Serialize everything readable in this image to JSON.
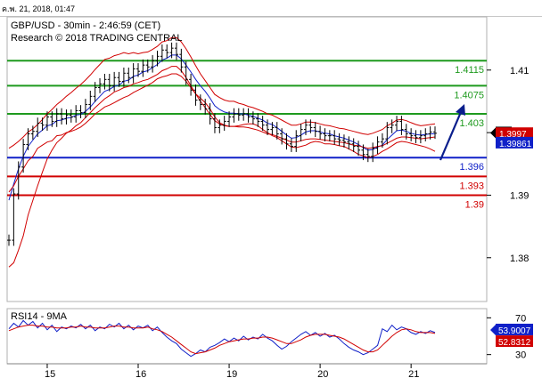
{
  "window": {
    "timestamp": "ค.พ. 21, 2018, 01:47"
  },
  "chart_data": [
    {
      "type": "line",
      "title": "GBP/USD - 30min - 2:46:59 (CET)",
      "subtitle": "Research © 2018 TRADING CENTRAL",
      "ylim": [
        1.373,
        1.4185
      ],
      "y_ticks": [
        {
          "v": 1.41,
          "label": "1.41"
        },
        {
          "v": 1.4,
          "label": "1.40"
        },
        {
          "v": 1.39,
          "label": "1.39"
        },
        {
          "v": 1.38,
          "label": "1.38"
        }
      ],
      "x_ticks": [
        "15",
        "16",
        "19",
        "20",
        "21"
      ],
      "grid": false,
      "current_price": {
        "label": "1.4",
        "value": 1.39981
      },
      "price_tags": [
        {
          "label": "1.3997",
          "value": 1.3997,
          "color": "#d10000"
        },
        {
          "label": "1.39861",
          "value": 1.39861,
          "color": "#1020c8"
        }
      ],
      "levels": [
        {
          "label": "1.4115",
          "value": 1.4115,
          "color": "#1e9a1e"
        },
        {
          "label": "1.4075",
          "value": 1.4075,
          "color": "#1e9a1e"
        },
        {
          "label": "1.403",
          "value": 1.403,
          "color": "#1e9a1e"
        },
        {
          "label": "1.396",
          "value": 1.396,
          "color": "#1020c8"
        },
        {
          "label": "1.393",
          "value": 1.393,
          "color": "#d10000"
        },
        {
          "label": "1.39",
          "value": 1.39,
          "color": "#d10000"
        }
      ],
      "series": [
        {
          "values": [
            1.3828,
            1.3902,
            1.3945,
            1.3981,
            1.3998,
            1.4002,
            1.4015,
            1.4012,
            1.4025,
            1.4018,
            1.403,
            1.4022,
            1.4028,
            1.4025,
            1.4035,
            1.4032,
            1.4045,
            1.4058,
            1.4072,
            1.4078,
            1.4085,
            1.4075,
            1.4088,
            1.4082,
            1.4095,
            1.4088,
            1.4102,
            1.4098,
            1.4108,
            1.4105,
            1.4115,
            1.4122,
            1.4132,
            1.4128,
            1.4135,
            1.4125,
            1.4105,
            1.4085,
            1.4068,
            1.4052,
            1.4045,
            1.4038,
            1.4022,
            1.4008,
            1.4012,
            1.4018,
            1.4025,
            1.403,
            1.4028,
            1.403,
            1.4025,
            1.4022,
            1.4018,
            1.4012,
            1.4005,
            1.4008,
            1.3998,
            1.399,
            1.3982,
            1.3978,
            1.3995,
            1.4005,
            1.4012,
            1.4008,
            1.4002,
            1.3998,
            1.3995,
            1.3995,
            1.399,
            1.3988,
            1.3985,
            1.3982,
            1.3978,
            1.3972,
            1.3965,
            1.3962,
            1.3975,
            1.3985,
            1.399,
            1.4008,
            1.4012,
            1.4018,
            1.4005,
            1.3998,
            1.3995,
            1.3992,
            1.3995,
            1.3998,
            1.4001,
            1.3999
          ]
        },
        {
          "values": [
            1.3892,
            1.3918,
            1.3942,
            1.3962,
            1.3978,
            1.3988,
            1.3998,
            1.4004,
            1.4011,
            1.4013,
            1.4019,
            1.402,
            1.4023,
            1.4024,
            1.4028,
            1.4029,
            1.4034,
            1.4041,
            1.405,
            1.4058,
            1.4066,
            1.4069,
            1.4074,
            1.4076,
            1.4082,
            1.4084,
            1.409,
            1.4092,
            1.4097,
            1.4099,
            1.4104,
            1.4109,
            1.4116,
            1.4119,
            1.4124,
            1.4124,
            1.4118,
            1.4108,
            1.4097,
            1.4085,
            1.4075,
            1.4066,
            1.4055,
            1.4043,
            1.4037,
            1.4033,
            1.4031,
            1.4031,
            1.403,
            1.403,
            1.4028,
            1.4026,
            1.4023,
            1.402,
            1.4015,
            1.4013,
            1.4008,
            1.4002,
            1.3996,
            1.3991,
            1.3992,
            1.3996,
            1.4001,
            1.4003,
            1.4003,
            1.4001,
            1.3999,
            1.3998,
            1.3995,
            1.3993,
            1.3991,
            1.3988,
            1.3985,
            1.3981,
            1.3976,
            1.3972,
            1.3973,
            1.3977,
            1.398,
            1.3989,
            1.3996,
            1.4003,
            1.4004,
            1.4002,
            1.3999,
            1.3997,
            1.3996,
            1.3997,
            1.3998,
            1.3998
          ]
        },
        {
          "values": [
            1.3975,
            1.398,
            1.3986,
            1.3993,
            1.4001,
            1.4006,
            1.4013,
            1.4021,
            1.403,
            1.4037,
            1.4045,
            1.4051,
            1.4058,
            1.4064,
            1.4071,
            1.4077,
            1.4084,
            1.4092,
            1.4101,
            1.4109,
            1.4117,
            1.4119,
            1.4123,
            1.4125,
            1.4128,
            1.4126,
            1.4128,
            1.4126,
            1.4128,
            1.4129,
            1.4133,
            1.4138,
            1.4145,
            1.4147,
            1.4152,
            1.4152,
            1.4145,
            1.4134,
            1.4121,
            1.4107,
            1.4094,
            1.4083,
            1.4072,
            1.4061,
            1.4056,
            1.4052,
            1.405,
            1.405,
            1.4047,
            1.4045,
            1.4042,
            1.404,
            1.4037,
            1.4034,
            1.403,
            1.4028,
            1.4024,
            1.402,
            1.4016,
            1.4012,
            1.4012,
            1.4014,
            1.4017,
            1.4017,
            1.4016,
            1.4014,
            1.4012,
            1.4011,
            1.4009,
            1.4007,
            1.4006,
            1.4004,
            1.4002,
            1.4,
            1.3998,
            1.3997,
            1.3999,
            1.4002,
            1.4005,
            1.4011,
            1.4015,
            1.402,
            1.4021,
            1.4019,
            1.4016,
            1.4013,
            1.4011,
            1.4012,
            1.4013,
            1.4014
          ]
        },
        {
          "values": [
            1.3785,
            1.3792,
            1.3812,
            1.3835,
            1.3868,
            1.3892,
            1.3915,
            1.3937,
            1.3958,
            1.3972,
            1.3984,
            1.3991,
            1.3999,
            1.4004,
            1.4011,
            1.4016,
            1.4024,
            1.4032,
            1.404,
            1.4047,
            1.4054,
            1.4059,
            1.4065,
            1.4068,
            1.4072,
            1.4074,
            1.4078,
            1.408,
            1.4083,
            1.4085,
            1.4089,
            1.4093,
            1.4099,
            1.4102,
            1.4106,
            1.4106,
            1.4099,
            1.4088,
            1.4075,
            1.4062,
            1.405,
            1.404,
            1.4029,
            1.4019,
            1.4014,
            1.4011,
            1.401,
            1.401,
            1.4009,
            1.4009,
            1.4008,
            1.4006,
            1.4004,
            1.4001,
            1.3998,
            1.3997,
            1.3994,
            1.3991,
            1.3988,
            1.3985,
            1.3985,
            1.3987,
            1.3989,
            1.399,
            1.399,
            1.3989,
            1.3988,
            1.3987,
            1.3986,
            1.3985,
            1.3984,
            1.3982,
            1.398,
            1.3979,
            1.3977,
            1.3975,
            1.3976,
            1.3978,
            1.3979,
            1.3983,
            1.3987,
            1.3991,
            1.3993,
            1.3993,
            1.3992,
            1.3991,
            1.399,
            1.3991,
            1.3992,
            1.3993
          ]
        },
        {
          "values": [
            1.3905,
            1.3915,
            1.393,
            1.3942,
            1.3955,
            1.3962,
            1.3975,
            1.398,
            1.3985,
            1.3987,
            1.3995,
            1.3996,
            1.4,
            1.4002,
            1.4005,
            1.4009,
            1.4015,
            1.4022,
            1.403,
            1.4035,
            1.4041,
            1.4044,
            1.4048,
            1.4052,
            1.4056,
            1.4059,
            1.4064,
            1.4068,
            1.4072,
            1.4076,
            1.408,
            1.4086,
            1.4089,
            1.4091,
            1.4094,
            1.4094,
            1.409,
            1.4082,
            1.4072,
            1.4062,
            1.4055,
            1.4048,
            1.4038,
            1.4025,
            1.4016,
            1.4012,
            1.401,
            1.401,
            1.4011,
            1.4013,
            1.4014,
            1.4014,
            1.4011,
            1.4005,
            1.4,
            1.3995,
            1.3992,
            1.3987,
            1.3982,
            1.3977,
            1.3976,
            1.3978,
            1.398,
            1.3984,
            1.3986,
            1.3985,
            1.3982,
            1.3982,
            1.3981,
            1.3979,
            1.3978,
            1.3974,
            1.397,
            1.3965,
            1.3963,
            1.396,
            1.3962,
            1.3965,
            1.397,
            1.3974,
            1.3979,
            1.3984,
            1.3986,
            1.3985,
            1.3983,
            1.3981,
            1.3979,
            1.3977,
            1.3974,
            1.397
          ]
        }
      ]
    },
    {
      "type": "line",
      "title": "RSI14 - 9MA",
      "ylim": [
        20,
        80
      ],
      "y_ticks": [
        {
          "v": 70,
          "label": "70"
        },
        {
          "v": 30,
          "label": "30"
        }
      ],
      "tags": [
        {
          "label": "53.9007",
          "value": 53.9,
          "color": "#1020c8"
        },
        {
          "label": "52.8312",
          "value": 52.83,
          "color": "#d10000"
        }
      ],
      "series": [
        {
          "values": [
            58,
            64,
            60,
            67,
            62,
            66,
            59,
            64,
            57,
            62,
            55,
            60,
            58,
            61,
            59,
            63,
            58,
            62,
            56,
            60,
            58,
            63,
            60,
            64,
            58,
            62,
            57,
            61,
            59,
            62,
            56,
            60,
            54,
            49,
            45,
            42,
            36,
            32,
            28,
            31,
            35,
            33,
            38,
            40,
            43,
            47,
            44,
            48,
            45,
            50,
            46,
            49,
            47,
            52,
            48,
            45,
            40,
            36,
            39,
            44,
            48,
            52,
            55,
            51,
            54,
            50,
            53,
            49,
            51,
            47,
            42,
            38,
            35,
            33,
            30,
            32,
            36,
            40,
            58,
            55,
            62,
            57,
            60,
            58,
            54,
            52,
            55,
            53,
            56,
            54
          ]
        },
        {
          "values": [
            56,
            58,
            60,
            61,
            62,
            62,
            61,
            61,
            60,
            60,
            59,
            59,
            59,
            60,
            60,
            61,
            60,
            60,
            59,
            59,
            59,
            60,
            61,
            61,
            60,
            60,
            59,
            59,
            59,
            60,
            58,
            57,
            55,
            52,
            49,
            45,
            41,
            37,
            33,
            31,
            32,
            33,
            35,
            37,
            40,
            42,
            44,
            45,
            46,
            47,
            47,
            48,
            48,
            49,
            49,
            48,
            46,
            44,
            42,
            42,
            44,
            46,
            49,
            51,
            52,
            52,
            52,
            51,
            50,
            49,
            47,
            44,
            41,
            38,
            35,
            33,
            33,
            35,
            40,
            45,
            50,
            54,
            57,
            58,
            57,
            55,
            54,
            54,
            54,
            53
          ]
        }
      ]
    }
  ]
}
